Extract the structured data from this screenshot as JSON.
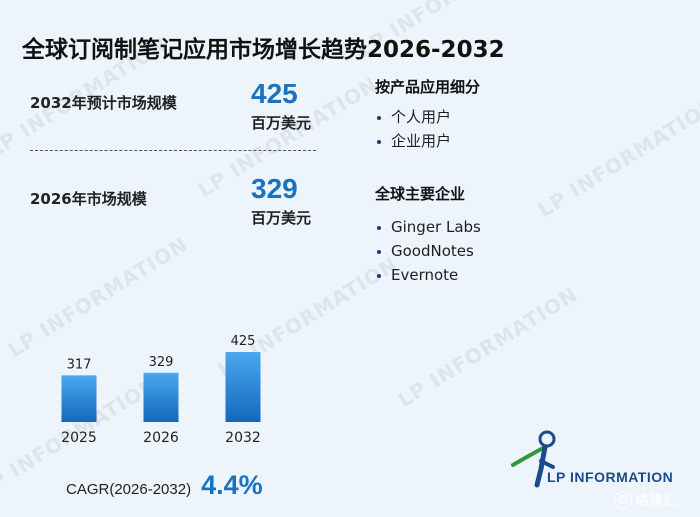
{
  "header": {
    "title": "全球订阅制笔记应用市场增长趋势2026-2032"
  },
  "stats": [
    {
      "label": "2032年预计市场规模",
      "value": "425",
      "unit": "百万美元"
    },
    {
      "label": "2026年市场规模",
      "value": "329",
      "unit": "百万美元"
    }
  ],
  "segments": {
    "title": "按产品应用细分",
    "items": [
      "个人用户",
      "企业用户"
    ]
  },
  "companies": {
    "title": "全球主要企业",
    "items": [
      "Ginger Labs",
      "GoodNotes",
      "Evernote"
    ]
  },
  "chart_data": {
    "type": "bar",
    "categories": [
      "2025",
      "2026",
      "2032"
    ],
    "values": [
      317,
      329,
      425
    ],
    "title": "",
    "xlabel": "",
    "ylabel": "",
    "ylim": [
      0,
      425
    ],
    "grid": false,
    "colors": {
      "bar_top": "#4aa8ee",
      "bar_bottom": "#1368bd"
    }
  },
  "cagr": {
    "label": "CAGR(2026-2032)",
    "value": "4.4%"
  },
  "logo": {
    "text": "LP INFORMATION"
  },
  "watermark": {
    "text": "LP INFORMATION"
  },
  "badge": {
    "text": "格隆汇"
  },
  "colors": {
    "accent": "#1a73c2",
    "background": "#eef4fb",
    "text": "#1f1f1f"
  }
}
